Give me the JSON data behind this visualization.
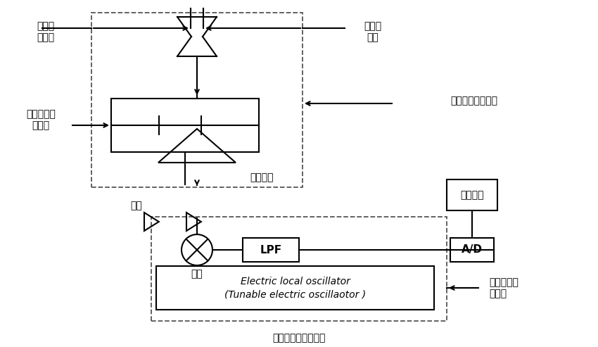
{
  "title": "系统的相干探测系统",
  "bg_color": "#ffffff",
  "labels": {
    "brillouin_scatter": "布里渊\n散射光",
    "brillouin_laser": "布里渊\n激光",
    "microwave_receiver": "微波外差接收装置",
    "balanced_detector": "双平衡光电\n探测器",
    "data_processing": "数据处理",
    "amplify": "放大",
    "beat_signal": "拍摄信号",
    "mixer": "混频",
    "lpf": "LPF",
    "ad": "A/D",
    "electric_oscillator_line1": "Electric local oscillator",
    "electric_oscillator_line2": "(Tunable electric oscillaotor )",
    "electronic_receiver": "电子外差接\n装置收"
  },
  "fig_width": 8.5,
  "fig_height": 4.93
}
